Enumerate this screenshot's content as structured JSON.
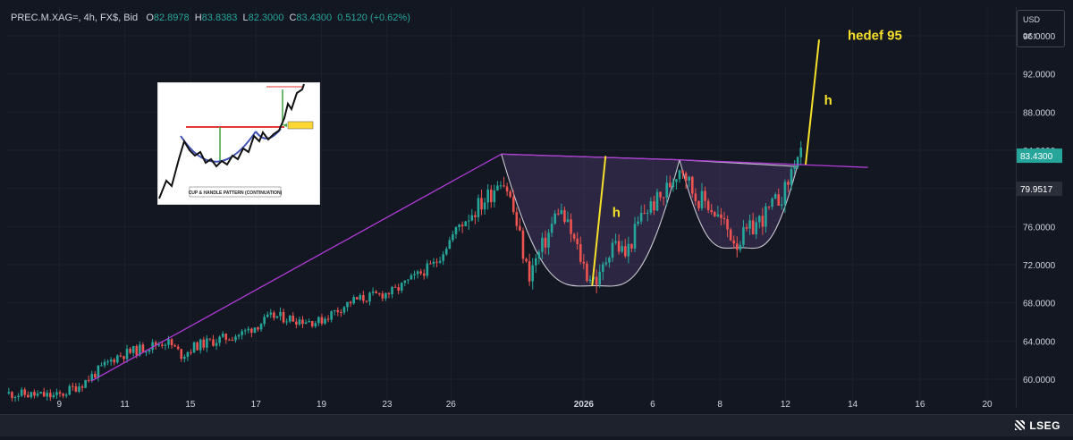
{
  "header": {
    "symbol": "PREC.M.XAG=, 4h, FX$, Bid",
    "open_label": "O",
    "open": "82.8978",
    "high_label": "H",
    "high": "83.8383",
    "low_label": "L",
    "low": "82.3000",
    "close_label": "C",
    "close": "83.4300",
    "change": "0.5120 (+0.62%)"
  },
  "axis_panel": {
    "currency": "USD",
    "unit": "oz t"
  },
  "annotations": {
    "target_text": "hedef 95",
    "h_left": "h",
    "h_right": "h"
  },
  "inset": {
    "caption": "CUP & HANDLE PATTERN (CONTINUATION)"
  },
  "brand": {
    "logo": "LSEG"
  },
  "colors": {
    "up": "#26a69a",
    "down": "#ef5350",
    "pattern_line": "#b03ad6",
    "annotation": "#f5e02a",
    "background": "#131722"
  },
  "chart_data": {
    "type": "candlestick",
    "y_ticks": [
      "96.0000",
      "92.0000",
      "88.0000",
      "84.0000",
      "80.0000",
      "76.0000",
      "72.0000",
      "68.0000",
      "64.0000",
      "60.0000"
    ],
    "ylim": [
      57,
      99
    ],
    "x_ticks": [
      "9",
      "11",
      "15",
      "17",
      "19",
      "23",
      "26",
      "2026",
      "6",
      "8",
      "12",
      "14",
      "16",
      "20"
    ],
    "price_labels": [
      {
        "value": 83.43,
        "text": "83.4300",
        "style": "last"
      },
      {
        "value": 79.9517,
        "text": "79.9517",
        "style": "reference"
      }
    ],
    "lines": [
      {
        "name": "rising-trendline",
        "points": [
          [
            5.0,
            59.8
          ],
          [
            29.4,
            83.6
          ]
        ]
      },
      {
        "name": "neckline",
        "points": [
          [
            29.4,
            83.6
          ],
          [
            40.0,
            83.0
          ],
          [
            51.2,
            82.2
          ]
        ]
      },
      {
        "name": "left-cup-height",
        "points": [
          [
            34.8,
            69.8
          ],
          [
            35.6,
            83.4
          ]
        ]
      },
      {
        "name": "target-projection",
        "points": [
          [
            47.5,
            82.5
          ],
          [
            48.3,
            95.6
          ]
        ]
      },
      {
        "name": "right-cup-height",
        "points": null
      }
    ],
    "cups": [
      {
        "name": "left-cup",
        "from": [
          29.4,
          83.6
        ],
        "bottom": [
          35.0,
          69.8
        ],
        "to": [
          40.0,
          83.0
        ]
      },
      {
        "name": "right-cup",
        "from": [
          40.0,
          83.0
        ],
        "bottom": [
          43.6,
          73.8
        ],
        "to": [
          47.0,
          82.3
        ]
      }
    ]
  }
}
